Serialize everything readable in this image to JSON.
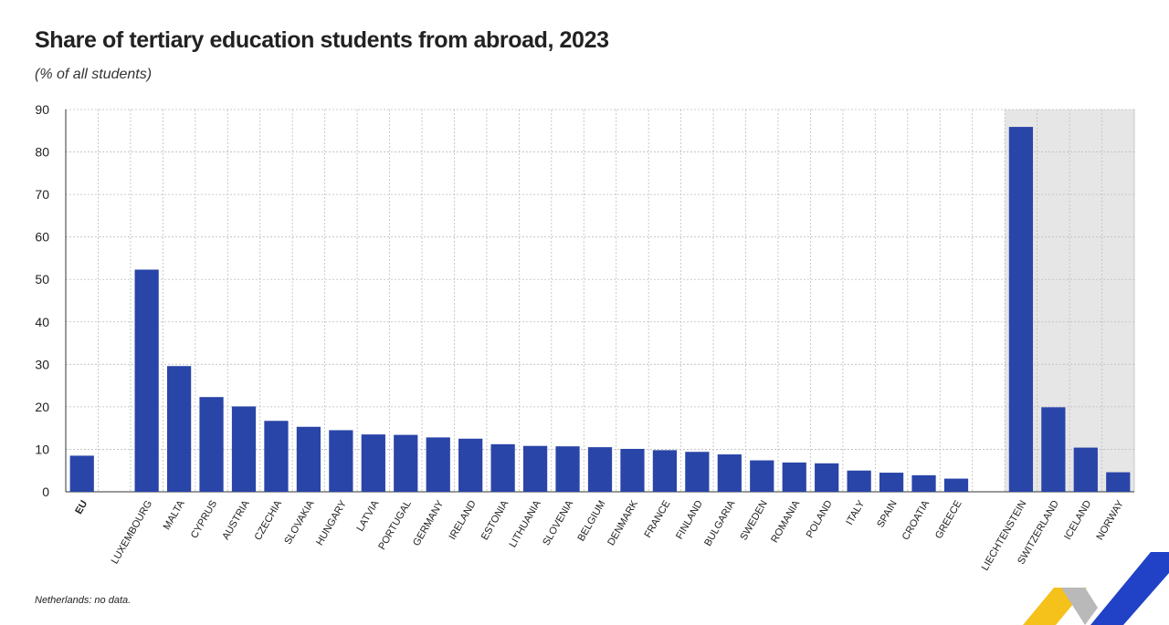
{
  "title": "Share of tertiary education students from abroad, 2023",
  "subtitle": "(% of all students)",
  "footnote": "Netherlands: no data.",
  "colors": {
    "bar": "#2a45a8",
    "shade": "#e6e6e6",
    "grid": "#bdbdbd",
    "axis": "#333333",
    "logo_yellow": "#f5c21b",
    "logo_blue": "#2141c7",
    "logo_grey": "#b9b9b9"
  },
  "chart_data": {
    "type": "bar",
    "title": "Share of tertiary education students from abroad, 2023",
    "ylabel": "(% of all students)",
    "xlabel": "",
    "ylim": [
      0,
      90
    ],
    "yticks": [
      "0",
      "10",
      "20",
      "30",
      "40",
      "50",
      "60",
      "70",
      "80",
      "90"
    ],
    "grid": true,
    "shaded_group": [
      "LIECHTENSTEIN",
      "SWITZERLAND",
      "ICELAND",
      "NORWAY"
    ],
    "categories": [
      "EU",
      "",
      "LUXEMBOURG",
      "MALTA",
      "CYPRUS",
      "AUSTRIA",
      "CZECHIA",
      "SLOVAKIA",
      "HUNGARY",
      "LATVIA",
      "PORTUGAL",
      "GERMANY",
      "IRELAND",
      "ESTONIA",
      "LITHUANIA",
      "SLOVENIA",
      "BELGIUM",
      "DENMARK",
      "FRANCE",
      "FINLAND",
      "BULGARIA",
      "SWEDEN",
      "ROMANIA",
      "POLAND",
      "ITALY",
      "SPAIN",
      "CROATIA",
      "GREECE",
      "",
      "LIECHTENSTEIN",
      "SWITZERLAND",
      "ICELAND",
      "NORWAY"
    ],
    "values": [
      8.5,
      null,
      52.3,
      29.6,
      22.3,
      20.1,
      16.7,
      15.3,
      14.5,
      13.5,
      13.4,
      12.8,
      12.5,
      11.2,
      10.8,
      10.7,
      10.5,
      10.1,
      9.8,
      9.4,
      8.8,
      7.4,
      6.9,
      6.7,
      5.0,
      4.5,
      3.9,
      3.1,
      null,
      85.9,
      19.9,
      10.4,
      4.6
    ]
  }
}
